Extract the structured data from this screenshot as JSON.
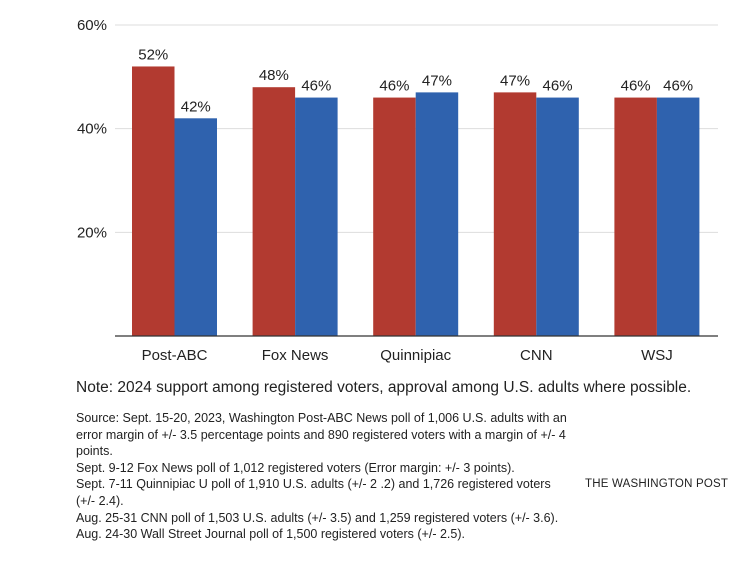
{
  "chart_data": {
    "type": "bar",
    "categories": [
      "Post-ABC",
      "Fox News",
      "Quinnipiac",
      "CNN",
      "WSJ"
    ],
    "series": [
      {
        "color": "#b23a30",
        "values": [
          52,
          48,
          46,
          47,
          46
        ]
      },
      {
        "color": "#2f62ae",
        "values": [
          42,
          46,
          47,
          46,
          46
        ]
      }
    ],
    "data_labels": [
      [
        "52%",
        "48%",
        "46%",
        "47%",
        "46%"
      ],
      [
        "42%",
        "46%",
        "47%",
        "46%",
        "46%"
      ]
    ],
    "ylim": [
      0,
      60
    ],
    "yticks": [
      20,
      40,
      60
    ],
    "ytick_labels": [
      "20%",
      "40%",
      "60%"
    ],
    "grid": true,
    "xlabel": "",
    "ylabel": ""
  },
  "note": "Note: 2024 support among registered voters, approval among U.S. adults where possible.",
  "source_lines": [
    "Source: Sept. 15-20, 2023, Washington Post-ABC News poll of 1,006 U.S. adults with an error margin of +/- 3.5 percentage points and 890 registered voters with a margin of +/- 4 points.",
    "Sept. 9-12 Fox News poll of 1,012 registered voters (Error margin: +/- 3 points).",
    "Sept. 7-11 Quinnipiac U poll of 1,910 U.S. adults (+/- 2 .2) and 1,726 registered voters (+/- 2.4).",
    "Aug. 25-31 CNN poll of 1,503 U.S. adults (+/- 3.5) and 1,259 registered voters (+/- 3.6).",
    "Aug. 24-30 Wall Street Journal poll of 1,500 registered voters (+/- 2.5)."
  ],
  "credit": "THE WASHINGTON POST"
}
